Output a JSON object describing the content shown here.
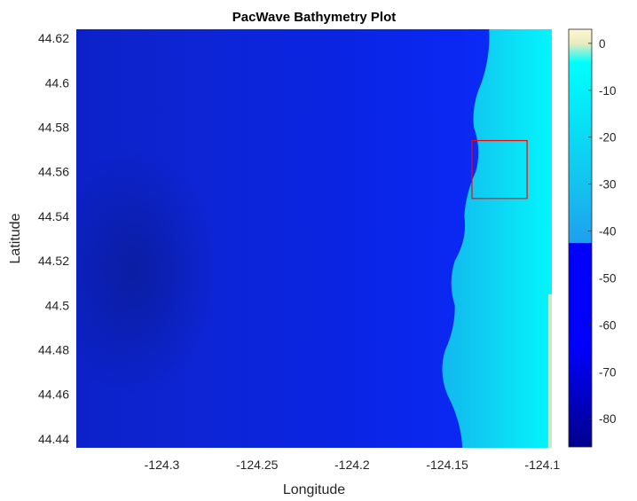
{
  "chart_data": {
    "type": "heatmap",
    "title": "PacWave Bathymetry Plot",
    "xlabel": "Longitude",
    "ylabel": "Latitude",
    "xlim": [
      -124.345,
      -124.095
    ],
    "ylim": [
      44.436,
      44.624
    ],
    "x_ticks": [
      {
        "value": -124.3,
        "label": "-124.3"
      },
      {
        "value": -124.25,
        "label": "-124.25"
      },
      {
        "value": -124.2,
        "label": "-124.2"
      },
      {
        "value": -124.15,
        "label": "-124.15"
      },
      {
        "value": -124.1,
        "label": "-124.1"
      }
    ],
    "y_ticks": [
      {
        "value": 44.44,
        "label": "44.44"
      },
      {
        "value": 44.46,
        "label": "44.46"
      },
      {
        "value": 44.48,
        "label": "44.48"
      },
      {
        "value": 44.5,
        "label": "44.5"
      },
      {
        "value": 44.52,
        "label": "44.52"
      },
      {
        "value": 44.54,
        "label": "44.54"
      },
      {
        "value": 44.56,
        "label": "44.56"
      },
      {
        "value": 44.58,
        "label": "44.58"
      },
      {
        "value": 44.6,
        "label": "44.6"
      },
      {
        "value": 44.62,
        "label": "44.62"
      }
    ],
    "colorbar": {
      "range": [
        -86,
        3
      ],
      "placement": "right",
      "ticks": [
        {
          "value": 0,
          "label": "0"
        },
        {
          "value": -10,
          "label": "-10"
        },
        {
          "value": -20,
          "label": "-20"
        },
        {
          "value": -30,
          "label": "-30"
        },
        {
          "value": -40,
          "label": "-40"
        },
        {
          "value": -50,
          "label": "-50"
        },
        {
          "value": -60,
          "label": "-60"
        },
        {
          "value": -70,
          "label": "-70"
        },
        {
          "value": -80,
          "label": "-80"
        }
      ],
      "stops": [
        {
          "value": -86,
          "color": "#00008c"
        },
        {
          "value": -75,
          "color": "#0000c8"
        },
        {
          "value": -64,
          "color": "#0000ff"
        },
        {
          "value": -42.6,
          "color": "#0000ff"
        },
        {
          "value": -42.5,
          "color": "#1ea0ee"
        },
        {
          "value": -30,
          "color": "#14c3ee"
        },
        {
          "value": -16,
          "color": "#06e3f6"
        },
        {
          "value": -4,
          "color": "#00ffff"
        },
        {
          "value": 0,
          "color": "#ecebbd"
        },
        {
          "value": 3,
          "color": "#fbf7d6"
        }
      ]
    },
    "depth_samples": {
      "note_units": "depth in meters (negative below sea level)",
      "grid": {
        "lon": [
          -124.345,
          -124.32,
          -124.295,
          -124.27,
          -124.245,
          -124.22,
          -124.195,
          -124.17,
          -124.145,
          -124.12,
          -124.095
        ],
        "lat": [
          44.624,
          44.59,
          44.556,
          44.522,
          44.488,
          44.454,
          44.436
        ],
        "rows": [
          [
            -76,
            -77,
            -77,
            -76,
            -75,
            -74,
            -71,
            -66,
            -57,
            -20,
            -3
          ],
          [
            -78,
            -80,
            -79,
            -77,
            -75,
            -73,
            -70,
            -64,
            -55,
            -20,
            -4
          ],
          [
            -81,
            -83,
            -81,
            -78,
            -75,
            -73,
            -70,
            -65,
            -54,
            -24,
            -6
          ],
          [
            -84,
            -85,
            -82,
            -78,
            -75,
            -73,
            -70,
            -65,
            -50,
            -30,
            -10
          ],
          [
            -80,
            -82,
            -81,
            -78,
            -75,
            -72,
            -69,
            -63,
            -46,
            -28,
            -8
          ],
          [
            -76,
            -78,
            -79,
            -78,
            -75,
            -72,
            -68,
            -61,
            -44,
            -25,
            -2
          ],
          [
            -75,
            -77,
            -78,
            -77,
            -74,
            -71,
            -67,
            -60,
            -43,
            -24,
            1
          ]
        ]
      },
      "shoreline_transition_lon": [
        {
          "lat": 44.624,
          "lon": -124.128
        },
        {
          "lat": 44.6,
          "lon": -124.132
        },
        {
          "lat": 44.58,
          "lon": -124.136
        },
        {
          "lat": 44.56,
          "lon": -124.135
        },
        {
          "lat": 44.54,
          "lon": -124.141
        },
        {
          "lat": 44.52,
          "lon": -124.146
        },
        {
          "lat": 44.5,
          "lon": -124.146
        },
        {
          "lat": 44.48,
          "lon": -124.151
        },
        {
          "lat": 44.46,
          "lon": -124.15
        },
        {
          "lat": 44.436,
          "lon": -124.142
        }
      ]
    },
    "annotations": [
      {
        "type": "rectangle",
        "color": "#ff0000",
        "lon_range": [
          -124.137,
          -124.108
        ],
        "lat_range": [
          44.548,
          44.574
        ]
      }
    ]
  }
}
